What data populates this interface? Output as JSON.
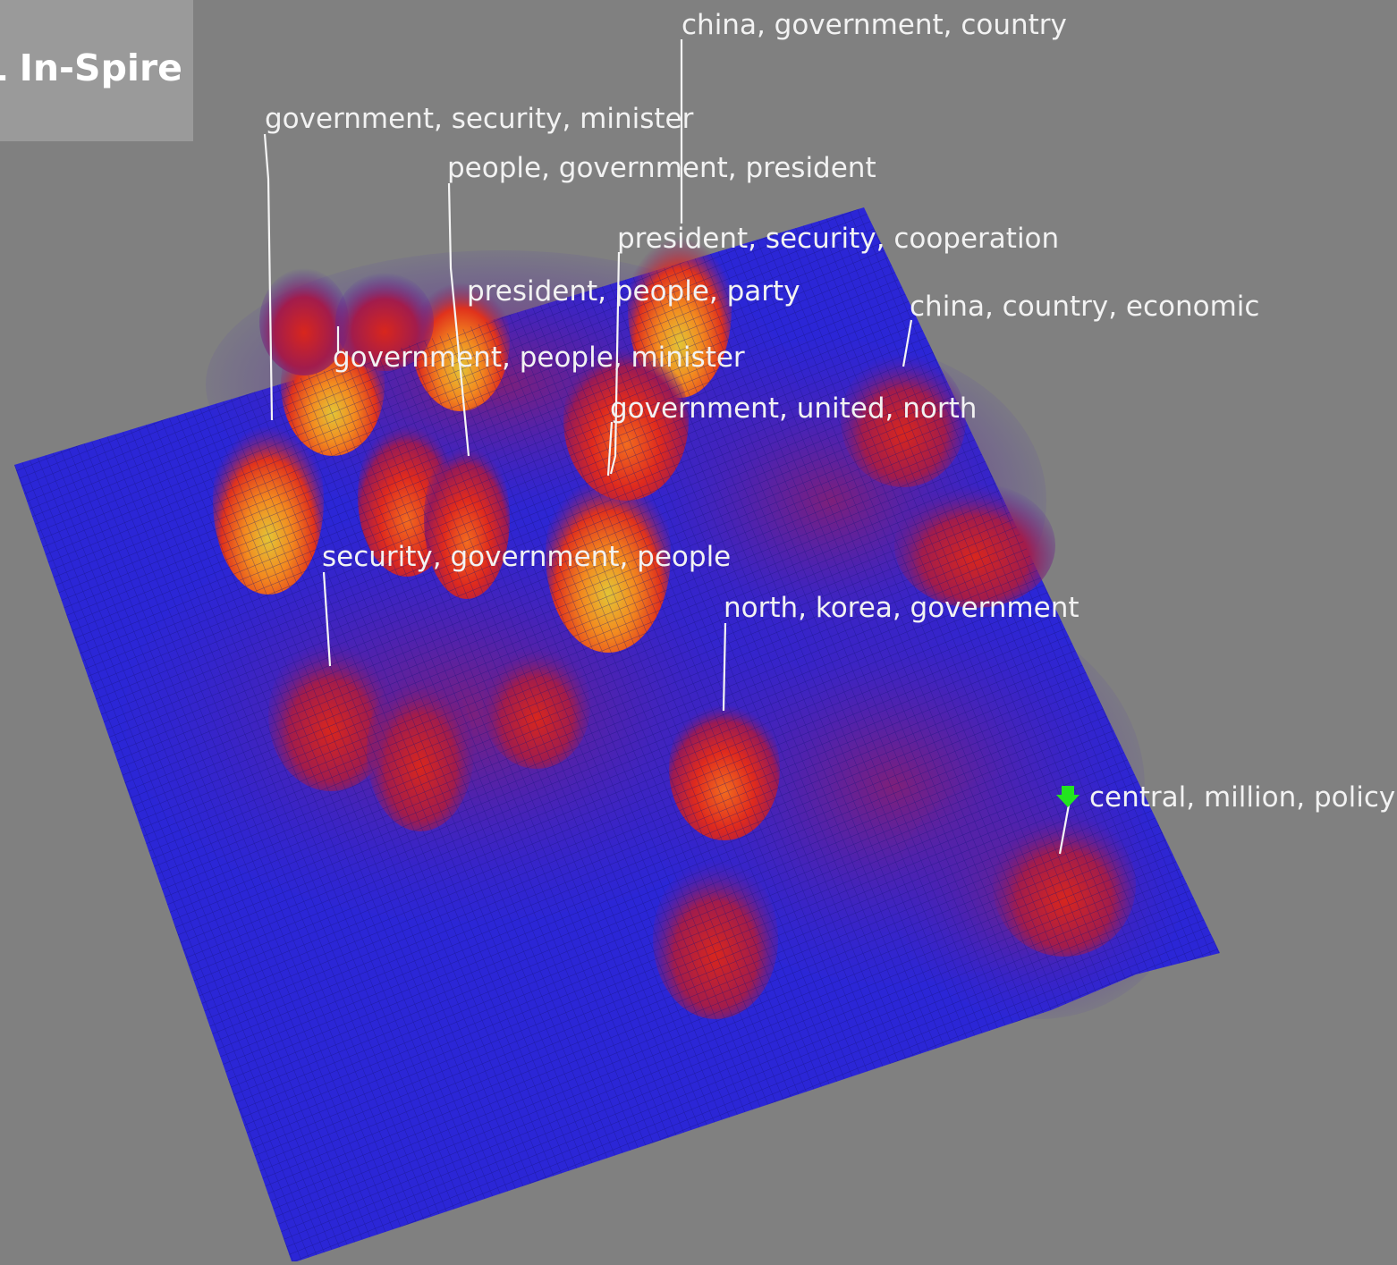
{
  "app": {
    "title": "IL In-Spire",
    "title_visible": "IL In-Spire"
  },
  "colors": {
    "background": "#808080",
    "plane": "#2b26d6",
    "peak_low": "#c21a1a",
    "peak_mid": "#ff3d17",
    "peak_high": "#d6b82e",
    "label": "#f2f2f2",
    "leader": "#f5f5f5",
    "marker": "#22e51f"
  },
  "landscape": {
    "type": "3d-topic-surface",
    "labels": [
      {
        "id": "lbl1",
        "text": "china, government, country"
      },
      {
        "id": "lbl2",
        "text": "government, security, minister"
      },
      {
        "id": "lbl3",
        "text": "people, government, president"
      },
      {
        "id": "lbl4",
        "text": "president, security, cooperation"
      },
      {
        "id": "lbl5",
        "text": "president, people, party"
      },
      {
        "id": "lbl6",
        "text": "china, country, economic"
      },
      {
        "id": "lbl7",
        "text": "government, people, minister"
      },
      {
        "id": "lbl8",
        "text": "government, united, north"
      },
      {
        "id": "lbl9",
        "text": "security, government, people"
      },
      {
        "id": "lbl10",
        "text": "north, korea, government"
      },
      {
        "id": "lbl11",
        "text": "central, million, policy"
      }
    ],
    "marker": {
      "icon": "green-down-arrow-icon",
      "label_ref": "lbl11"
    }
  }
}
